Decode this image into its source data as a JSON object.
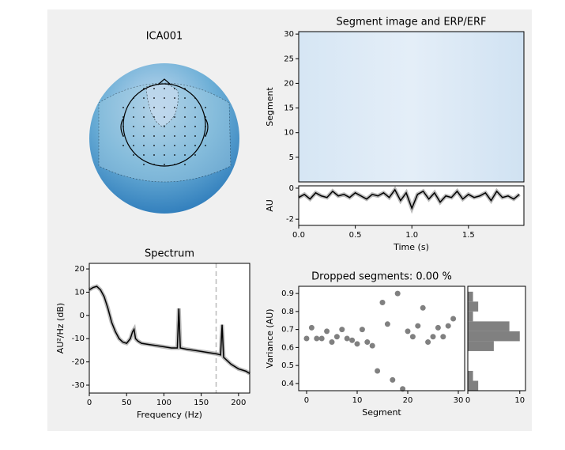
{
  "chart_data": [
    {
      "type": "topomap",
      "title": "ICA001"
    },
    {
      "type": "image",
      "title": "Segment image and ERP/ERF",
      "ylabel": "Segment",
      "ylim": [
        0,
        30.5
      ],
      "yticks": [
        5,
        10,
        15,
        20,
        25,
        30
      ]
    },
    {
      "type": "line",
      "xlabel": "Time (s)",
      "ylabel": "AU",
      "xlim": [
        0,
        1.99
      ],
      "ylim": [
        -2.4,
        0.15
      ],
      "xticks": [
        {
          "value": 0,
          "label": "0.0"
        },
        0.5,
        {
          "value": 1,
          "label": "1.0"
        },
        1.5
      ],
      "yticks": [
        0,
        -2
      ],
      "x": [
        0,
        0.05,
        0.1,
        0.15,
        0.2,
        0.25,
        0.3,
        0.35,
        0.4,
        0.45,
        0.5,
        0.55,
        0.6,
        0.65,
        0.7,
        0.75,
        0.8,
        0.85,
        0.9,
        0.95,
        1.0,
        1.05,
        1.1,
        1.15,
        1.2,
        1.25,
        1.3,
        1.35,
        1.4,
        1.45,
        1.5,
        1.55,
        1.6,
        1.65,
        1.7,
        1.75,
        1.8,
        1.85,
        1.9,
        1.95
      ],
      "series": [
        {
          "color": "#000000",
          "values": [
            -0.6,
            -0.4,
            -0.7,
            -0.3,
            -0.5,
            -0.6,
            -0.2,
            -0.5,
            -0.4,
            -0.6,
            -0.3,
            -0.5,
            -0.7,
            -0.4,
            -0.5,
            -0.3,
            -0.6,
            -0.1,
            -0.8,
            -0.3,
            -1.3,
            -0.4,
            -0.2,
            -0.7,
            -0.3,
            -0.9,
            -0.5,
            -0.6,
            -0.2,
            -0.7,
            -0.4,
            -0.6,
            -0.5,
            -0.3,
            -0.8,
            -0.2,
            -0.6,
            -0.5,
            -0.7,
            -0.4
          ]
        }
      ]
    },
    {
      "type": "line",
      "title": "Spectrum",
      "xlabel": "Frequency (Hz)",
      "ylabel": "AU²/Hz (dB)",
      "xlim": [
        0,
        215
      ],
      "ylim": [
        -33.4,
        22.4
      ],
      "xticks": [
        0,
        50,
        100,
        150,
        200
      ],
      "yticks": [
        -30,
        -20,
        -10,
        0,
        10,
        20
      ],
      "vlines": [
        170
      ],
      "x": [
        0,
        5,
        10,
        15,
        20,
        25,
        30,
        35,
        40,
        45,
        50,
        55,
        58,
        60,
        62,
        65,
        70,
        80,
        90,
        100,
        110,
        118,
        120,
        122,
        130,
        140,
        150,
        160,
        170,
        176,
        178,
        180,
        190,
        200,
        210,
        215
      ],
      "series": [
        {
          "color": "#000000",
          "values": [
            11,
            12,
            12.5,
            11,
            8,
            3,
            -3,
            -7,
            -10,
            -11.5,
            -12,
            -10,
            -7,
            -6,
            -10,
            -11,
            -12,
            -12.5,
            -13,
            -13.5,
            -14,
            -14,
            3,
            -14,
            -14.5,
            -15,
            -15.5,
            -16,
            -16.5,
            -17,
            -4,
            -18,
            -21,
            -23,
            -24,
            -25
          ]
        }
      ]
    },
    {
      "type": "scatter",
      "title": "Dropped segments: 0.00 %",
      "xlabel": "Segment",
      "ylabel": "Variance (AU)",
      "xlim": [
        -1.56,
        31.25
      ],
      "ylim": [
        0.36,
        0.94
      ],
      "xticks": [
        0,
        10,
        20,
        30
      ],
      "yticks": [
        0.4,
        0.5,
        0.6,
        0.7,
        0.8,
        0.9
      ],
      "color": "#808080",
      "x": [
        0,
        1,
        2,
        3,
        4,
        5,
        6,
        7,
        8,
        9,
        10,
        11,
        12,
        13,
        14,
        15,
        16,
        17,
        18,
        19,
        20,
        21,
        22,
        23,
        24,
        25,
        26,
        27,
        28,
        29
      ],
      "values": [
        0.65,
        0.71,
        0.65,
        0.65,
        0.69,
        0.63,
        0.66,
        0.7,
        0.65,
        0.64,
        0.62,
        0.7,
        0.63,
        0.61,
        0.47,
        0.85,
        0.73,
        0.42,
        0.9,
        0.37,
        0.69,
        0.66,
        0.72,
        0.82,
        0.63,
        0.66,
        0.71,
        0.66,
        0.72,
        0.76
      ]
    },
    {
      "type": "histogram",
      "orientation": "horizontal",
      "xlim": [
        0,
        11.1
      ],
      "ylim": [
        0.36,
        0.94
      ],
      "xticks": [
        0,
        10
      ],
      "color": "#808080",
      "bins": [
        0.36,
        0.415,
        0.47,
        0.525,
        0.58,
        0.635,
        0.69,
        0.745,
        0.8,
        0.855,
        0.91
      ],
      "values": [
        2,
        1,
        0,
        0,
        5,
        10,
        8,
        1,
        2,
        1
      ]
    }
  ]
}
